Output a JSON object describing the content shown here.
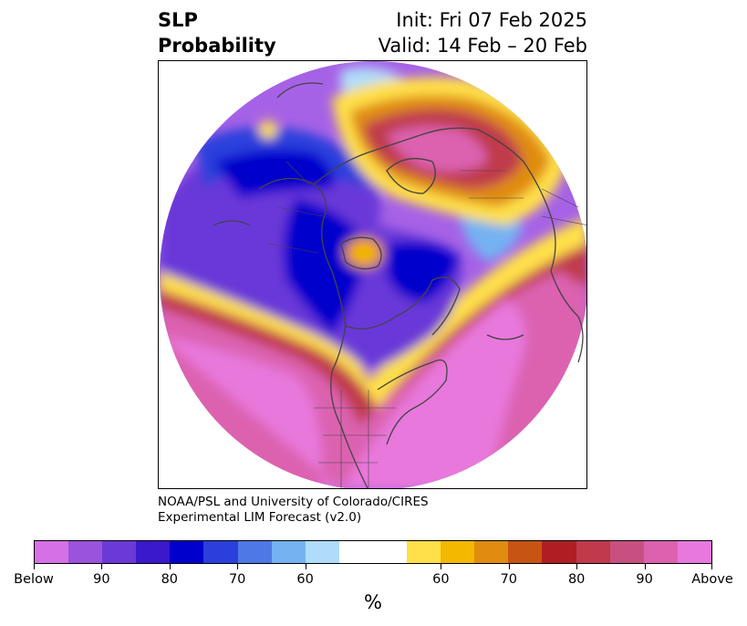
{
  "title": {
    "left_line1": "SLP",
    "left_line2": "Probability",
    "right_line1": "Init: Fri 07 Feb 2025",
    "right_line2": "Valid: 14 Feb – 20 Feb"
  },
  "credit": {
    "line1": "NOAA/PSL and University of Colorado/CIRES",
    "line2": "Experimental LIM Forecast (v2.0)"
  },
  "colorbar": {
    "colors": [
      "#d670e6",
      "#9a53dd",
      "#6a39d8",
      "#3a18cc",
      "#0000cc",
      "#2a3fdc",
      "#4e78e6",
      "#74b2f2",
      "#b0dcfa",
      "#ffffff",
      "#ffffff",
      "#ffe04a",
      "#f4b800",
      "#e08c10",
      "#c85414",
      "#b01e22",
      "#c03a4c",
      "#c85080",
      "#dc62b0",
      "#e878dc"
    ],
    "labels": [
      "Below",
      "90",
      "80",
      "70",
      "60",
      "60",
      "70",
      "80",
      "90",
      "Above"
    ],
    "unit": "%"
  },
  "map": {
    "colors": {
      "purple": "#a662e6",
      "violet": "#6a39d8",
      "deep_blue": "#0000cc",
      "blue": "#2a3fdc",
      "light_blue": "#74b2f2",
      "pale_blue": "#b0dcfa",
      "yellow": "#ffe04a",
      "gold": "#f4b800",
      "orange": "#e08c10",
      "red": "#c03a4c",
      "magenta": "#dc62b0",
      "pink": "#e878dc",
      "coast": "#444444"
    }
  }
}
